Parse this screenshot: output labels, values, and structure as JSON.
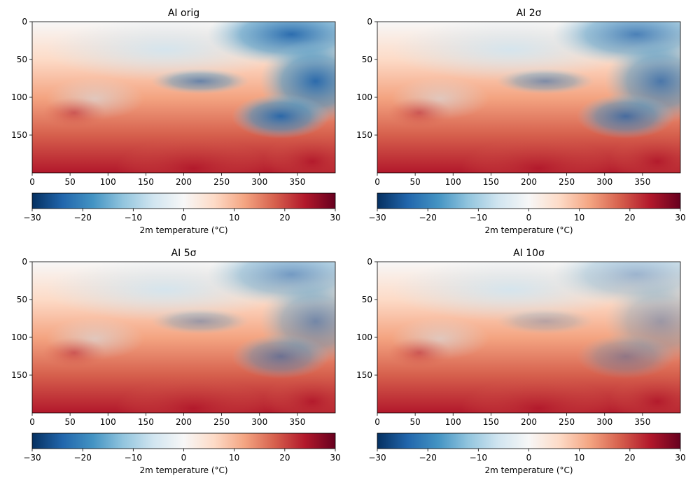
{
  "chart_data": [
    {
      "type": "heatmap",
      "title": "AI orig",
      "xticks": [
        0,
        50,
        100,
        150,
        200,
        250,
        300,
        350
      ],
      "yticks": [
        0,
        50,
        100,
        150
      ],
      "xlim": [
        0,
        400
      ],
      "ylim": [
        200,
        0
      ],
      "colorbar": {
        "label": "2m temperature (°C)",
        "range": [
          -30,
          30
        ],
        "ticks": [
          -30,
          -20,
          -10,
          0,
          10,
          20,
          30
        ],
        "cmap": "RdBu_r"
      },
      "cold_intensity": 1.0
    },
    {
      "type": "heatmap",
      "title": "AI 2σ",
      "xticks": [
        0,
        50,
        100,
        150,
        200,
        250,
        300,
        350
      ],
      "yticks": [
        0,
        50,
        100,
        150
      ],
      "xlim": [
        0,
        400
      ],
      "ylim": [
        200,
        0
      ],
      "colorbar": {
        "label": "2m temperature (°C)",
        "range": [
          -30,
          30
        ],
        "ticks": [
          -30,
          -20,
          -10,
          0,
          10,
          20,
          30
        ],
        "cmap": "RdBu_r"
      },
      "cold_intensity": 0.85
    },
    {
      "type": "heatmap",
      "title": "AI 5σ",
      "xticks": [
        0,
        50,
        100,
        150,
        200,
        250,
        300,
        350
      ],
      "yticks": [
        0,
        50,
        100,
        150
      ],
      "xlim": [
        0,
        400
      ],
      "ylim": [
        200,
        0
      ],
      "colorbar": {
        "label": "2m temperature (°C)",
        "range": [
          -30,
          30
        ],
        "ticks": [
          -30,
          -20,
          -10,
          0,
          10,
          20,
          30
        ],
        "cmap": "RdBu_r"
      },
      "cold_intensity": 0.65
    },
    {
      "type": "heatmap",
      "title": "AI 10σ",
      "xticks": [
        0,
        50,
        100,
        150,
        200,
        250,
        300,
        350
      ],
      "yticks": [
        0,
        50,
        100,
        150
      ],
      "xlim": [
        0,
        400
      ],
      "ylim": [
        200,
        0
      ],
      "colorbar": {
        "label": "2m temperature (°C)",
        "range": [
          -30,
          30
        ],
        "ticks": [
          -30,
          -20,
          -10,
          0,
          10,
          20,
          30
        ],
        "cmap": "RdBu_r"
      },
      "cold_intensity": 0.45
    }
  ],
  "colors": {
    "cmap_stops": [
      "#053061",
      "#2166ac",
      "#4393c3",
      "#92c5de",
      "#d1e5f0",
      "#f7f7f7",
      "#fddbc7",
      "#f4a582",
      "#d6604d",
      "#b2182b",
      "#67001f"
    ]
  }
}
